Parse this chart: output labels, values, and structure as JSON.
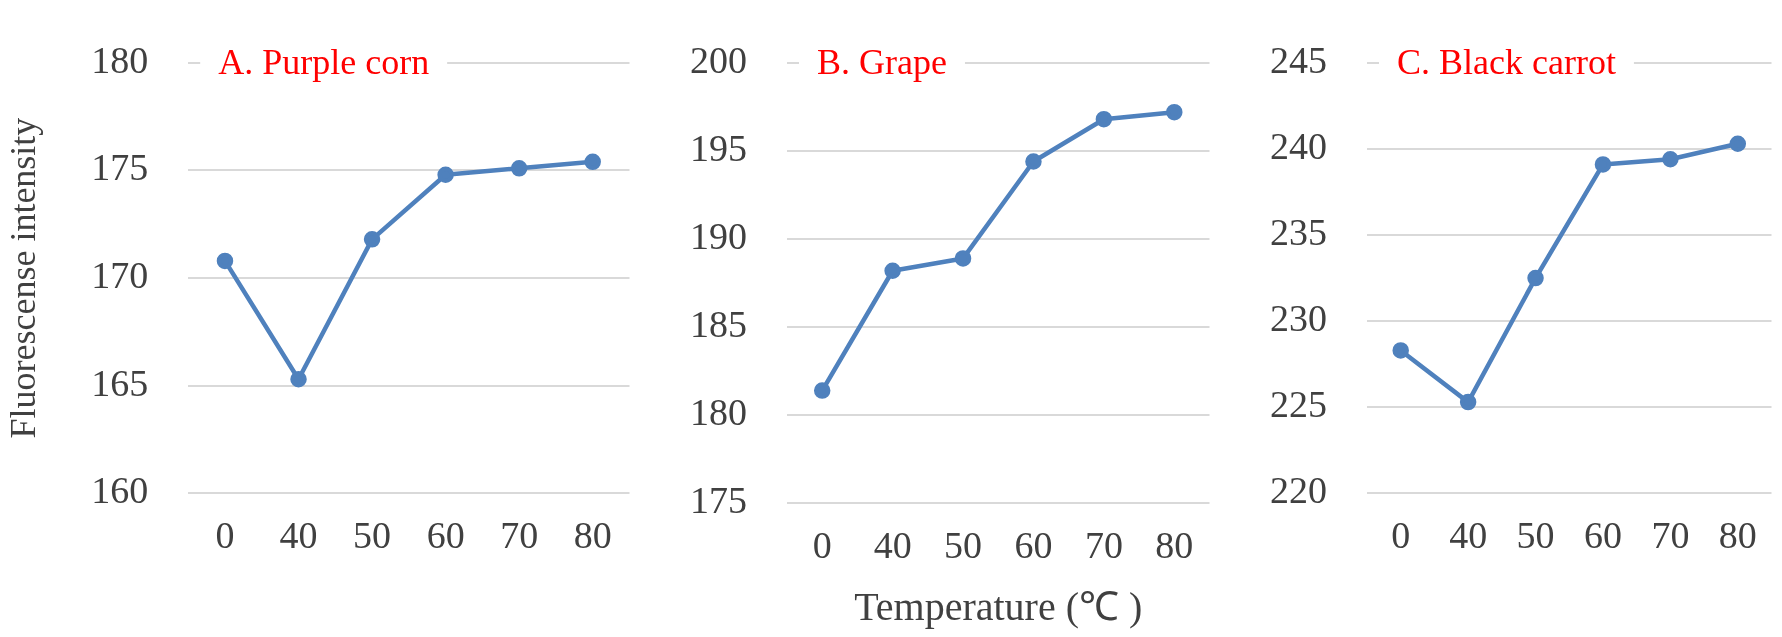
{
  "chart_data": [
    {
      "type": "line",
      "title": "A. Purple corn",
      "ylabel": "Fluorescense intensity",
      "categories": [
        "0",
        "40",
        "50",
        "60",
        "70",
        "80"
      ],
      "values": [
        170.8,
        165.3,
        171.8,
        174.8,
        175.1,
        175.4
      ],
      "color": "#4f81bd",
      "ylim": [
        160,
        180
      ],
      "yticks": [
        160,
        165,
        170,
        175,
        180
      ],
      "grid": "y",
      "marker": "circle"
    },
    {
      "type": "line",
      "title": "B. Grape",
      "xlabel": "Temperature (℃ )",
      "categories": [
        "0",
        "40",
        "50",
        "60",
        "70",
        "80"
      ],
      "values": [
        181.4,
        188.2,
        188.9,
        194.4,
        196.8,
        197.2
      ],
      "color": "#4f81bd",
      "ylim": [
        175,
        200
      ],
      "yticks": [
        175,
        180,
        185,
        190,
        195,
        200
      ],
      "grid": "y",
      "marker": "circle"
    },
    {
      "type": "line",
      "title": "C. Black carrot",
      "categories": [
        "0",
        "40",
        "50",
        "60",
        "70",
        "80"
      ],
      "values": [
        228.3,
        225.3,
        232.5,
        239.1,
        239.4,
        240.3
      ],
      "color": "#4f81bd",
      "ylim": [
        220,
        245
      ],
      "yticks": [
        220,
        225,
        230,
        235,
        240,
        245
      ],
      "grid": "y",
      "marker": "circle"
    }
  ]
}
